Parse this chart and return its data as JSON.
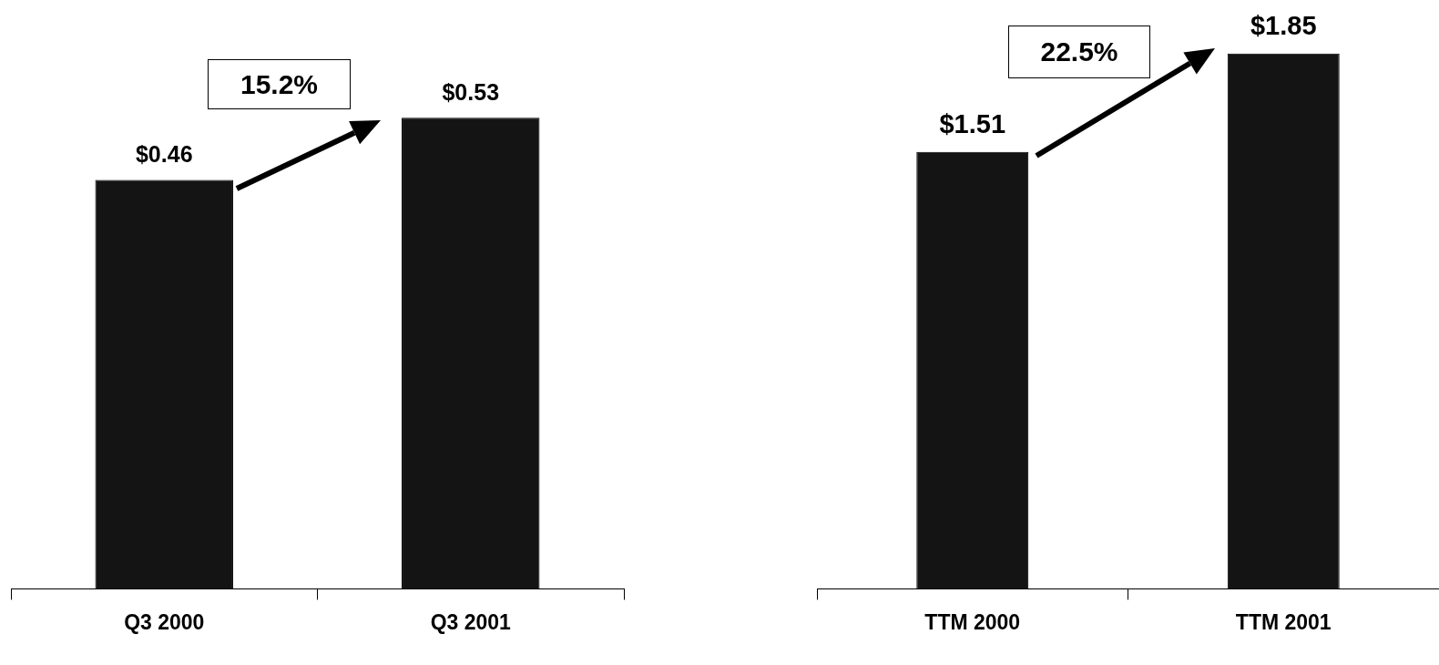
{
  "chart_data": [
    {
      "type": "bar",
      "categories": [
        "Q3 2000",
        "Q3 2001"
      ],
      "values": [
        0.46,
        0.53
      ],
      "value_labels": [
        "$0.46",
        "$0.53"
      ],
      "color": "#141414",
      "annotations": [
        "15.2%"
      ]
    },
    {
      "type": "bar",
      "categories": [
        "TTM 2000",
        "TTM 2001"
      ],
      "values": [
        1.51,
        1.85
      ],
      "value_labels": [
        "$1.51",
        "$1.85"
      ],
      "color": "#141414",
      "annotations": [
        "22.5%"
      ]
    }
  ]
}
